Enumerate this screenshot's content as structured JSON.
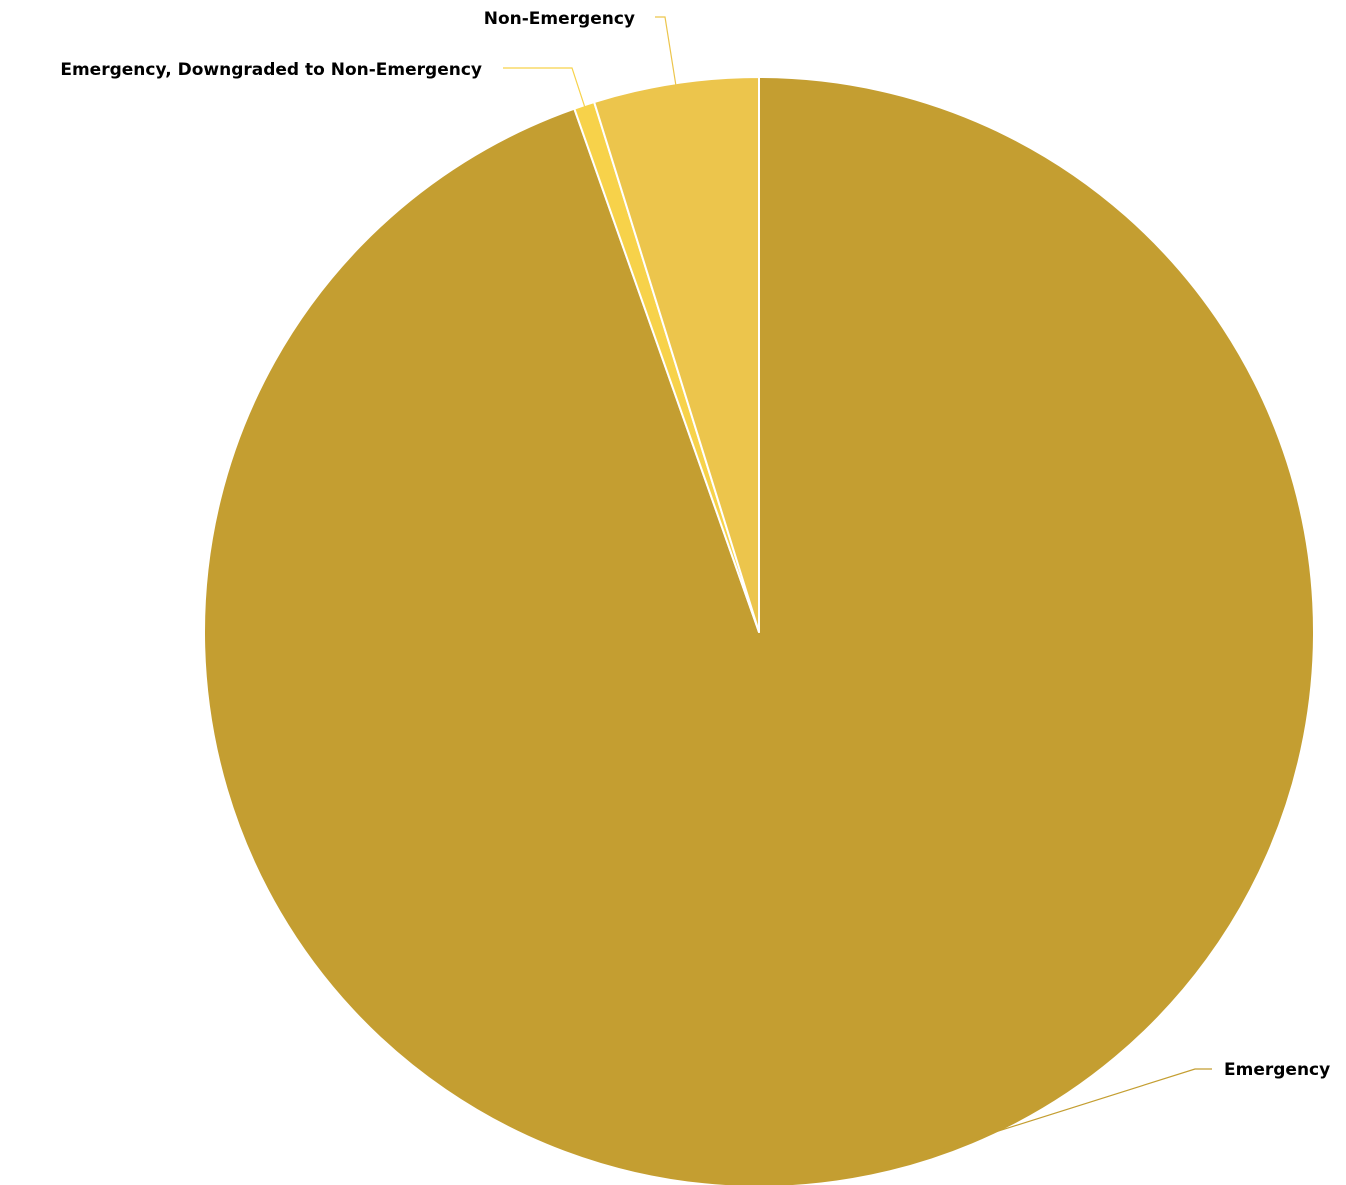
{
  "chart_data": {
    "type": "pie",
    "start_angle": "12 o'clock, clockwise",
    "slices": [
      {
        "label": "Emergency",
        "value": 94.6,
        "color": "#C49E31"
      },
      {
        "label": "Emergency, Downgraded to Non-Emergency",
        "value": 0.6,
        "color": "#F7D24A"
      },
      {
        "label": "Non-Emergency",
        "value": 4.8,
        "color": "#ECC54C"
      }
    ],
    "legend": "none (slice labels with leader lines)"
  }
}
